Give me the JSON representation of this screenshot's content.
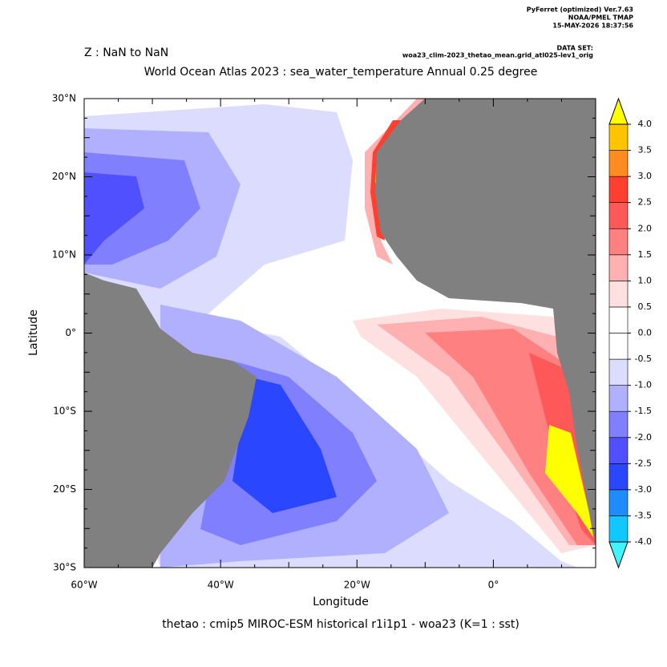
{
  "chart_data": {
    "type": "map",
    "header": [
      "PyFerret (optimized) Ver.7.63",
      "NOAA/PMEL TMAP",
      "15-MAY-2026 18:37:56"
    ],
    "dataset_label": "DATA SET:",
    "dataset": "woa23_clim-2023_thetao_mean.grid_atl025-lev1_orig",
    "zrange": "Z : NaN to NaN",
    "title": "World Ocean Atlas 2023 : sea_water_temperature Annual  0.25 degree",
    "xlabel": "Longitude",
    "ylabel": "Latitude",
    "caption": "thetao : cmip5 MIROC-ESM historical r1i1p1 - woa23  (K=1 : sst)",
    "xlim": [
      -60,
      15
    ],
    "ylim": [
      -30,
      30
    ],
    "xticks": [
      {
        "value": -60,
        "label": "60°W"
      },
      {
        "value": -40,
        "label": "40°W"
      },
      {
        "value": -20,
        "label": "20°W"
      },
      {
        "value": 0,
        "label": "0°"
      }
    ],
    "yticks": [
      {
        "value": -30,
        "label": "30°S"
      },
      {
        "value": -20,
        "label": "20°S"
      },
      {
        "value": -10,
        "label": "10°S"
      },
      {
        "value": 0,
        "label": "0°"
      },
      {
        "value": 10,
        "label": "10°N"
      },
      {
        "value": 20,
        "label": "20°N"
      },
      {
        "value": 30,
        "label": "30°N"
      }
    ],
    "land_color": "#808080",
    "colorbar": {
      "levels": [
        {
          "value": -4,
          "label": "-4.0"
        },
        {
          "value": -3.5,
          "label": "-3.5"
        },
        {
          "value": -3,
          "label": "-3.0"
        },
        {
          "value": -2.5,
          "label": "-2.5"
        },
        {
          "value": -2,
          "label": "-2.0"
        },
        {
          "value": -1.5,
          "label": "-1.5"
        },
        {
          "value": -1,
          "label": "-1.0"
        },
        {
          "value": -0.5,
          "label": "-0.5"
        },
        {
          "value": 0,
          "label": "0.0"
        },
        {
          "value": 0.5,
          "label": "0.5"
        },
        {
          "value": 1,
          "label": "1.0"
        },
        {
          "value": 1.5,
          "label": "1.5"
        },
        {
          "value": 2,
          "label": "2.0"
        },
        {
          "value": 2.5,
          "label": "2.5"
        },
        {
          "value": 3,
          "label": "3.0"
        },
        {
          "value": 3.5,
          "label": "3.5"
        },
        {
          "value": 4,
          "label": "4.0"
        }
      ],
      "colors": [
        "#10c8ff",
        "#1e8cff",
        "#2a46ff",
        "#5050ff",
        "#8080ff",
        "#b0b0ff",
        "#dcdcff",
        "#ffffff",
        "#ffffff",
        "#ffe0e0",
        "#ffb0b0",
        "#ff8080",
        "#ff5858",
        "#ff4030",
        "#ff8c1e",
        "#ffc400"
      ],
      "under_color": "#40f4ff",
      "over_color": "#ffff00"
    }
  }
}
